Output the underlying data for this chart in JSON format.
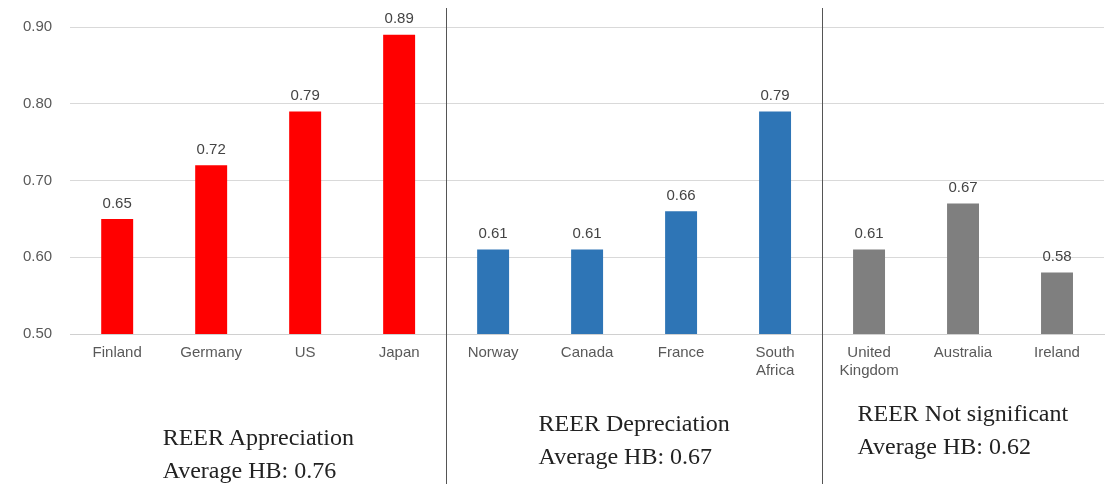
{
  "chart_data": {
    "type": "bar",
    "categories": [
      "Finland",
      "Germany",
      "US",
      "Japan",
      "Norway",
      "Canada",
      "France",
      "South Africa",
      "United Kingdom",
      "Australia",
      "Ireland"
    ],
    "values": [
      0.65,
      0.72,
      0.79,
      0.89,
      0.61,
      0.61,
      0.66,
      0.79,
      0.61,
      0.67,
      0.58
    ],
    "colors": [
      "#ff0000",
      "#ff0000",
      "#ff0000",
      "#ff0000",
      "#2e75b6",
      "#2e75b6",
      "#2e75b6",
      "#2e75b6",
      "#7f7f7f",
      "#7f7f7f",
      "#7f7f7f"
    ],
    "ylim": [
      0.5,
      0.9
    ],
    "yticks": [
      {
        "value": 0.5,
        "label": "0.50"
      },
      {
        "value": 0.6,
        "label": "0.60"
      },
      {
        "value": 0.7,
        "label": "0.70"
      },
      {
        "value": 0.8,
        "label": "0.80"
      },
      {
        "value": 0.9,
        "label": "0.90"
      }
    ],
    "grid": "y",
    "legend": false,
    "data_labels": true,
    "annotations": [
      "REER Appreciation\nAverage HB: 0.76",
      "REER Depreciation\nAverage HB: 0.67",
      "REER Not significant\nAverage HB: 0.62"
    ]
  }
}
